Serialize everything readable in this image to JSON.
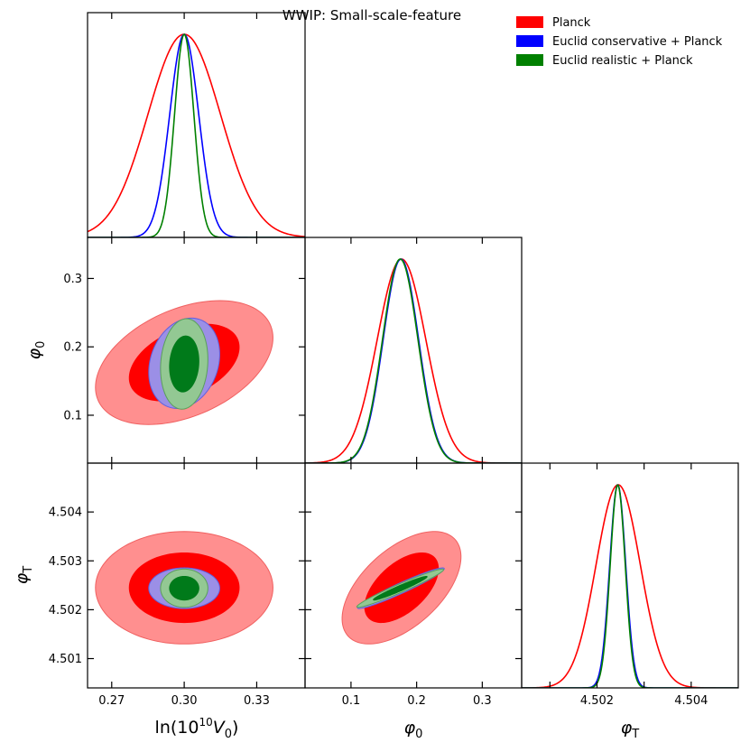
{
  "title": "WWIP: Small-scale-feature",
  "legend": [
    {
      "label": "Planck",
      "color": "#ff0000"
    },
    {
      "label": "Euclid conservative + Planck",
      "color": "#0000ff"
    },
    {
      "label": "Euclid realistic + Planck",
      "color": "#008000"
    }
  ],
  "params": [
    {
      "label_base": "ln(10",
      "label_sup": "10",
      "label_tail": "V",
      "label_sub": "0",
      "label_close": ")",
      "range": [
        0.26,
        0.35
      ],
      "ticks": [
        {
          "v": 0.27,
          "t": "0.27"
        },
        {
          "v": 0.3,
          "t": "0.30"
        },
        {
          "v": 0.33,
          "t": "0.33"
        }
      ]
    },
    {
      "label_base": "φ",
      "label_sub": "0",
      "range": [
        0.03,
        0.36
      ],
      "ticks": [
        {
          "v": 0.1,
          "t": "0.1"
        },
        {
          "v": 0.2,
          "t": "0.2"
        },
        {
          "v": 0.3,
          "t": "0.3"
        }
      ]
    },
    {
      "label_base": "φ",
      "label_sub": "T",
      "range": [
        4.5004,
        4.505
      ],
      "ticks": [
        {
          "v": 4.501,
          "t": "4.501"
        },
        {
          "v": 4.502,
          "t": "4.502"
        },
        {
          "v": 4.503,
          "t": "4.503"
        },
        {
          "v": 4.504,
          "t": "4.504"
        }
      ]
    }
  ],
  "chart_data": {
    "type": "triangle-corner",
    "title": "WWIP: Small-scale-feature",
    "parameters": [
      "ln(10^10 V0)",
      "phi_0",
      "phi_T"
    ],
    "series": [
      {
        "name": "Planck",
        "color": "#ff0000",
        "mean": [
          0.3,
          0.177,
          4.50245
        ],
        "sigma": [
          0.015,
          0.037,
          0.00047
        ],
        "corr": {
          "0-1": 0.4,
          "0-2": 0.0,
          "1-2": 0.55
        }
      },
      {
        "name": "Euclid conservative + Planck",
        "color": "#0000ff",
        "mean": [
          0.3,
          0.176,
          4.50244
        ],
        "sigma": [
          0.006,
          0.027,
          0.00017
        ],
        "corr": {
          "0-1": 0.2,
          "0-2": 0.0,
          "1-2": 0.96
        }
      },
      {
        "name": "Euclid realistic + Planck",
        "color": "#008000",
        "mean": [
          0.3,
          0.175,
          4.50244
        ],
        "sigma": [
          0.004,
          0.027,
          0.00016
        ],
        "corr": {
          "0-1": 0.1,
          "0-2": 0.0,
          "1-2": 0.97
        }
      }
    ],
    "contour_levels": [
      "68%",
      "95%"
    ],
    "xlabels": [
      "ln(10^10 V0)",
      "phi_0",
      "phi_T"
    ],
    "ylabels": [
      "phi_0",
      "phi_T"
    ]
  }
}
